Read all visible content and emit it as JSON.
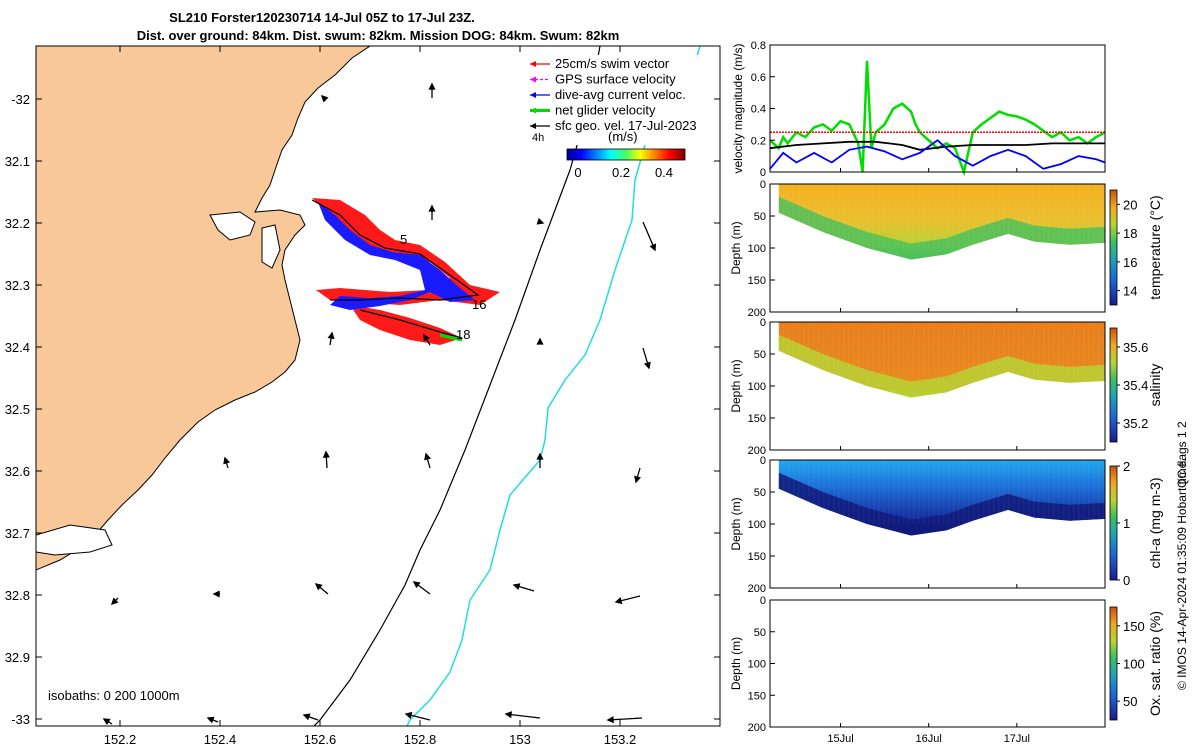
{
  "title": {
    "line1": "SL210 Forster120230714 14-Jul 05Z to 17-Jul 23Z.",
    "line2": "Dist. over ground: 84km. Dist. swum: 82km. Mission DOG: 84km. Swum: 82km"
  },
  "map": {
    "xticks": [
      "152.2",
      "152.4",
      "152.6",
      "152.8",
      "153",
      "153.2"
    ],
    "yticks": [
      "-32",
      "32.1",
      "32.2",
      "32.3",
      "32.4",
      "32.5",
      "32.6",
      "32.7",
      "32.8",
      "32.9",
      "-33"
    ],
    "legend": [
      {
        "label": "25cm/s swim vector",
        "color": "#ff0000"
      },
      {
        "label": "GPS surface velocity",
        "color": "#ff00ff"
      },
      {
        "label": "dive-avg current veloc.",
        "color": "#0000ff"
      },
      {
        "label": "net glider velocity",
        "color": "#00dd00"
      },
      {
        "label": "sfc geo. vel. 17-Jul-2023",
        "color": "#000000"
      }
    ],
    "colorbar": {
      "label_left": "4h",
      "unit": "(m/s)",
      "ticks": [
        "0",
        "0.2",
        "0.4"
      ]
    },
    "day_labels": [
      "5",
      "16",
      "18"
    ],
    "isobaths_label": "isobaths: 0   200  1000m",
    "land_color": "#f9c898",
    "isobath_200_color": "#000000",
    "isobath_1000_color": "#22dddd"
  },
  "chart_data": [
    {
      "type": "line",
      "ylabel": "velocity magnitude (m/s)",
      "ylim": [
        0,
        0.8
      ],
      "yticks": [
        "0",
        "0.2",
        "0.4",
        "0.6",
        "0.8"
      ],
      "x_day_range": [
        14.2,
        18.0
      ],
      "series": [
        {
          "color": "#00dd00",
          "x": [
            14.2,
            14.3,
            14.35,
            14.4,
            14.5,
            14.6,
            14.7,
            14.8,
            14.9,
            15.0,
            15.1,
            15.2,
            15.25,
            15.3,
            15.35,
            15.4,
            15.5,
            15.6,
            15.7,
            15.8,
            15.85,
            15.9,
            16.0,
            16.1,
            16.2,
            16.3,
            16.4,
            16.5,
            16.6,
            16.7,
            16.8,
            16.9,
            17.0,
            17.1,
            17.2,
            17.3,
            17.4,
            17.5,
            17.6,
            17.7,
            17.8,
            17.9,
            18.0
          ],
          "y": [
            0.2,
            0.15,
            0.22,
            0.18,
            0.25,
            0.22,
            0.28,
            0.3,
            0.26,
            0.32,
            0.3,
            0.18,
            0.0,
            0.7,
            0.15,
            0.25,
            0.3,
            0.4,
            0.43,
            0.38,
            0.3,
            0.25,
            0.2,
            0.15,
            0.18,
            0.15,
            0.0,
            0.25,
            0.3,
            0.34,
            0.38,
            0.36,
            0.35,
            0.33,
            0.3,
            0.26,
            0.22,
            0.25,
            0.2,
            0.22,
            0.18,
            0.22,
            0.25
          ]
        },
        {
          "color": "#ff0000",
          "x": [
            14.2,
            18.0
          ],
          "y": [
            0.25,
            0.25
          ]
        },
        {
          "color": "#000000",
          "x": [
            14.2,
            14.5,
            14.8,
            15.1,
            15.4,
            15.7,
            15.9,
            16.2,
            16.5,
            16.8,
            17.1,
            17.4,
            17.7,
            18.0
          ],
          "y": [
            0.15,
            0.17,
            0.18,
            0.19,
            0.19,
            0.17,
            0.14,
            0.16,
            0.17,
            0.17,
            0.17,
            0.18,
            0.18,
            0.18
          ]
        },
        {
          "color": "#0000ff",
          "x": [
            14.2,
            14.35,
            14.5,
            14.7,
            14.9,
            15.1,
            15.3,
            15.5,
            15.7,
            15.9,
            16.1,
            16.3,
            16.5,
            16.7,
            16.9,
            17.1,
            17.3,
            17.5,
            17.7,
            17.9,
            18.0
          ],
          "y": [
            0.02,
            0.12,
            0.06,
            0.12,
            0.06,
            0.14,
            0.16,
            0.13,
            0.08,
            0.12,
            0.2,
            0.1,
            0.04,
            0.1,
            0.14,
            0.1,
            0.02,
            0.05,
            0.1,
            0.08,
            0.06
          ]
        }
      ]
    },
    {
      "type": "heatmap",
      "variable": "temperature",
      "ylabel": "Depth (m)",
      "colorbar_label": "temperature (°C)",
      "ylim": [
        0,
        200
      ],
      "yticks": [
        "0",
        "50",
        "100",
        "150",
        "200"
      ],
      "colorbar_range": [
        13,
        21
      ],
      "colorbar_ticks": [
        "14",
        "16",
        "18",
        "20"
      ],
      "bottom_depth_profile": [
        [
          14.3,
          45
        ],
        [
          14.8,
          75
        ],
        [
          15.3,
          100
        ],
        [
          15.8,
          118
        ],
        [
          16.2,
          110
        ],
        [
          16.5,
          95
        ],
        [
          16.9,
          78
        ],
        [
          17.2,
          90
        ],
        [
          17.6,
          95
        ],
        [
          18.0,
          92
        ]
      ],
      "surface_value": 20.5,
      "bottom_value": 17.5
    },
    {
      "type": "heatmap",
      "variable": "salinity",
      "ylabel": "Depth (m)",
      "colorbar_label": "salinity",
      "ylim": [
        0,
        200
      ],
      "yticks": [
        "0",
        "50",
        "100",
        "150",
        "200"
      ],
      "colorbar_range": [
        35.1,
        35.7
      ],
      "colorbar_ticks": [
        "35.2",
        "35.4",
        "35.6"
      ],
      "surface_value": 35.62,
      "bottom_value": 35.45
    },
    {
      "type": "heatmap",
      "variable": "chl-a",
      "ylabel": "Depth (m)",
      "colorbar_label": "chl-a (mg m-3)",
      "ylim": [
        0,
        200
      ],
      "yticks": [
        "0",
        "50",
        "100",
        "150",
        "200"
      ],
      "colorbar_range": [
        0,
        2
      ],
      "colorbar_ticks": [
        "0",
        "1",
        "2"
      ],
      "surface_value": 0.8,
      "bottom_value": 0.1
    },
    {
      "type": "heatmap",
      "variable": "oxygen saturation",
      "ylabel": "Depth (m)",
      "colorbar_label": "Ox. sat. ratio (%)",
      "ylim": [
        0,
        200
      ],
      "yticks": [
        "0",
        "50",
        "100",
        "150",
        "200"
      ],
      "colorbar_range": [
        25,
        175
      ],
      "colorbar_ticks": [
        "50",
        "100",
        "150"
      ],
      "xticks": [
        "15Jul",
        "16Jul",
        "17Jul"
      ]
    }
  ],
  "footer": {
    "qc_flags": "QC flags 1  2",
    "credit": "© IMOS 14-Apr-2024 01:35:09 Hobart time."
  }
}
